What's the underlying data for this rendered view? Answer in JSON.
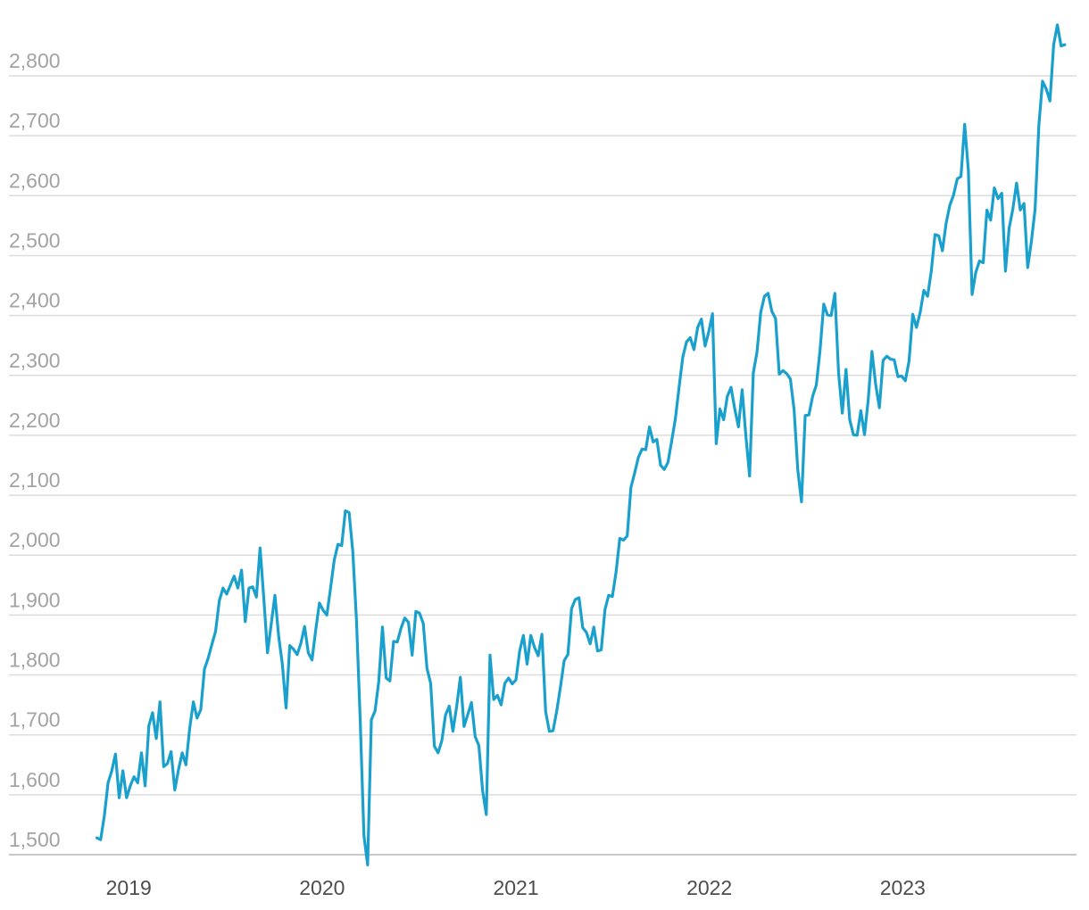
{
  "chart_data": {
    "type": "line",
    "title": "",
    "xlabel": "",
    "ylabel": "",
    "x_tick_labels": [
      "2019",
      "2020",
      "2021",
      "2022",
      "2023"
    ],
    "y_tick_labels": [
      "1,500",
      "1,600",
      "1,700",
      "1,800",
      "1,900",
      "2,000",
      "2,100",
      "2,200",
      "2,300",
      "2,400",
      "2,500",
      "2,600",
      "2,700",
      "2,800"
    ],
    "ylim": [
      1500,
      2800
    ],
    "xlim": [
      "2018-11-01",
      "2023-11-15"
    ],
    "grid": true,
    "legend": "none",
    "line_color": "#1aa0cc",
    "series": [
      {
        "x": [
          "2018-11-02",
          "2018-11-09",
          "2018-11-16",
          "2018-11-23",
          "2018-11-30",
          "2018-12-07",
          "2018-12-14",
          "2018-12-21",
          "2018-12-28",
          "2019-01-04",
          "2019-01-11",
          "2019-01-18",
          "2019-01-25",
          "2019-02-01",
          "2019-02-08",
          "2019-02-15",
          "2019-02-22",
          "2019-03-01",
          "2019-03-08",
          "2019-03-15",
          "2019-03-22",
          "2019-03-29",
          "2019-04-05",
          "2019-04-12",
          "2019-04-19",
          "2019-04-26",
          "2019-05-03",
          "2019-05-10",
          "2019-05-17",
          "2019-05-24",
          "2019-05-31",
          "2019-06-07",
          "2019-06-14",
          "2019-06-21",
          "2019-06-28",
          "2019-07-05",
          "2019-07-12",
          "2019-07-19",
          "2019-07-26",
          "2019-08-02",
          "2019-08-09",
          "2019-08-16",
          "2019-08-23",
          "2019-08-30",
          "2019-09-06",
          "2019-09-13",
          "2019-09-20",
          "2019-09-27",
          "2019-10-04",
          "2019-10-11",
          "2019-10-18",
          "2019-10-25",
          "2019-11-01",
          "2019-11-08",
          "2019-11-15",
          "2019-11-22",
          "2019-11-29",
          "2019-12-06",
          "2019-12-13",
          "2019-12-20",
          "2019-12-27",
          "2020-01-03",
          "2020-01-10",
          "2020-01-17",
          "2020-01-24",
          "2020-01-31",
          "2020-02-07",
          "2020-02-14",
          "2020-02-21",
          "2020-02-28",
          "2020-03-06",
          "2020-03-13",
          "2020-03-20",
          "2020-03-27",
          "2020-04-03",
          "2020-04-10",
          "2020-04-17",
          "2020-04-24",
          "2020-05-01",
          "2020-05-08",
          "2020-05-15",
          "2020-05-22",
          "2020-05-29",
          "2020-06-05",
          "2020-06-12",
          "2020-06-19",
          "2020-06-26",
          "2020-07-03",
          "2020-07-10",
          "2020-07-17",
          "2020-07-24",
          "2020-07-31",
          "2020-08-07",
          "2020-08-14",
          "2020-08-21",
          "2020-08-28",
          "2020-09-04",
          "2020-09-11",
          "2020-09-18",
          "2020-09-25",
          "2020-10-02",
          "2020-10-09",
          "2020-10-16",
          "2020-10-23",
          "2020-10-30",
          "2020-11-06",
          "2020-11-13",
          "2020-11-20",
          "2020-11-27",
          "2020-12-04",
          "2020-12-11",
          "2020-12-18",
          "2020-12-25",
          "2021-01-01",
          "2021-01-08",
          "2021-01-15",
          "2021-01-22",
          "2021-01-29",
          "2021-02-05",
          "2021-02-12",
          "2021-02-19",
          "2021-02-26",
          "2021-03-05",
          "2021-03-12",
          "2021-03-19",
          "2021-03-26",
          "2021-04-02",
          "2021-04-09",
          "2021-04-16",
          "2021-04-23",
          "2021-04-30",
          "2021-05-07",
          "2021-05-14",
          "2021-05-21",
          "2021-05-28",
          "2021-06-04",
          "2021-06-11",
          "2021-06-18",
          "2021-06-25",
          "2021-07-02",
          "2021-07-09",
          "2021-07-16",
          "2021-07-23",
          "2021-07-30",
          "2021-08-06",
          "2021-08-13",
          "2021-08-20",
          "2021-08-27",
          "2021-09-03",
          "2021-09-10",
          "2021-09-17",
          "2021-09-24",
          "2021-10-01",
          "2021-10-08",
          "2021-10-15",
          "2021-10-22",
          "2021-10-29",
          "2021-11-05",
          "2021-11-12",
          "2021-11-19",
          "2021-11-26",
          "2021-12-03",
          "2021-12-10",
          "2021-12-17",
          "2021-12-24",
          "2021-12-31",
          "2022-01-07",
          "2022-01-14",
          "2022-01-21",
          "2022-01-28",
          "2022-02-04",
          "2022-02-11",
          "2022-02-18",
          "2022-02-25",
          "2022-03-04",
          "2022-03-11",
          "2022-03-18",
          "2022-03-25",
          "2022-04-01",
          "2022-04-08",
          "2022-04-15",
          "2022-04-22",
          "2022-04-29",
          "2022-05-06",
          "2022-05-13",
          "2022-05-20",
          "2022-05-27",
          "2022-06-03",
          "2022-06-10",
          "2022-06-17",
          "2022-06-24",
          "2022-07-01",
          "2022-07-08",
          "2022-07-15",
          "2022-07-22",
          "2022-07-29",
          "2022-08-05",
          "2022-08-12",
          "2022-08-19",
          "2022-08-26",
          "2022-09-02",
          "2022-09-09",
          "2022-09-16",
          "2022-09-23",
          "2022-09-30",
          "2022-10-07",
          "2022-10-14",
          "2022-10-21",
          "2022-10-28",
          "2022-11-04",
          "2022-11-11",
          "2022-11-18",
          "2022-11-25",
          "2022-12-02",
          "2022-12-09",
          "2022-12-16",
          "2022-12-23",
          "2022-12-30",
          "2023-01-06",
          "2023-01-13",
          "2023-01-20",
          "2023-01-27",
          "2023-02-03",
          "2023-02-10",
          "2023-02-17",
          "2023-02-24",
          "2023-03-03",
          "2023-03-10",
          "2023-03-17",
          "2023-03-24",
          "2023-03-31",
          "2023-04-07",
          "2023-04-14",
          "2023-04-21",
          "2023-04-28",
          "2023-05-05",
          "2023-05-12",
          "2023-05-19",
          "2023-05-26",
          "2023-06-02",
          "2023-06-09",
          "2023-06-16",
          "2023-06-23",
          "2023-06-30",
          "2023-07-07",
          "2023-07-14",
          "2023-07-21",
          "2023-07-28",
          "2023-08-04",
          "2023-08-11",
          "2023-08-18",
          "2023-08-25",
          "2023-09-01",
          "2023-09-08",
          "2023-09-15",
          "2023-09-22",
          "2023-09-29",
          "2023-10-06",
          "2023-10-13",
          "2023-10-20",
          "2023-10-27",
          "2023-11-03"
        ],
        "values": [
          1528,
          1525,
          1565,
          1620,
          1640,
          1668,
          1595,
          1640,
          1595,
          1615,
          1630,
          1620,
          1670,
          1615,
          1715,
          1737,
          1694,
          1755,
          1647,
          1652,
          1672,
          1608,
          1642,
          1670,
          1650,
          1710,
          1755,
          1728,
          1742,
          1810,
          1828,
          1851,
          1873,
          1924,
          1945,
          1935,
          1950,
          1965,
          1945,
          1975,
          1889,
          1945,
          1947,
          1930,
          2012,
          1928,
          1837,
          1885,
          1933,
          1865,
          1818,
          1745,
          1849,
          1843,
          1834,
          1853,
          1881,
          1837,
          1825,
          1875,
          1920,
          1908,
          1900,
          1945,
          1992,
          2018,
          2016,
          2074,
          2071,
          2006,
          1890,
          1725,
          1532,
          1483,
          1725,
          1740,
          1789,
          1880,
          1795,
          1790,
          1856,
          1855,
          1878,
          1895,
          1888,
          1833,
          1906,
          1903,
          1886,
          1811,
          1786,
          1681,
          1670,
          1690,
          1733,
          1748,
          1706,
          1747,
          1796,
          1714,
          1734,
          1754,
          1697,
          1682,
          1607,
          1567,
          1833,
          1759,
          1766,
          1750,
          1786,
          1795,
          1785,
          1792,
          1840,
          1866,
          1818,
          1866,
          1846,
          1832,
          1868,
          1739,
          1706,
          1707,
          1740,
          1780,
          1824,
          1834,
          1911,
          1926,
          1929,
          1879,
          1871,
          1852,
          1880,
          1840,
          1842,
          1909,
          1933,
          1931,
          1972,
          2028,
          2025,
          2032,
          2113,
          2137,
          2163,
          2177,
          2176,
          2214,
          2189,
          2193,
          2150,
          2143,
          2155,
          2191,
          2228,
          2281,
          2331,
          2356,
          2363,
          2343,
          2380,
          2394,
          2349,
          2373,
          2403,
          2186,
          2244,
          2226,
          2265,
          2280,
          2244,
          2214,
          2276,
          2199,
          2132,
          2304,
          2339,
          2405,
          2432,
          2437,
          2407,
          2395,
          2302,
          2308,
          2303,
          2294,
          2243,
          2142,
          2089,
          2233,
          2234,
          2265,
          2284,
          2342,
          2419,
          2401,
          2400,
          2437,
          2304,
          2237,
          2310,
          2226,
          2201,
          2200,
          2241,
          2201,
          2260,
          2340,
          2285,
          2246,
          2325,
          2332,
          2327,
          2326,
          2298,
          2299,
          2291,
          2324,
          2402,
          2380,
          2405,
          2442,
          2432,
          2474,
          2535,
          2533,
          2508,
          2554,
          2584,
          2601,
          2628,
          2632,
          2719,
          2642,
          2435,
          2472,
          2491,
          2488,
          2576,
          2559,
          2613,
          2595,
          2604,
          2474,
          2546,
          2578,
          2621,
          2576,
          2587,
          2480,
          2524,
          2578,
          2717,
          2791,
          2778,
          2758,
          2852,
          2885,
          2850,
          2852
        ]
      }
    ]
  }
}
